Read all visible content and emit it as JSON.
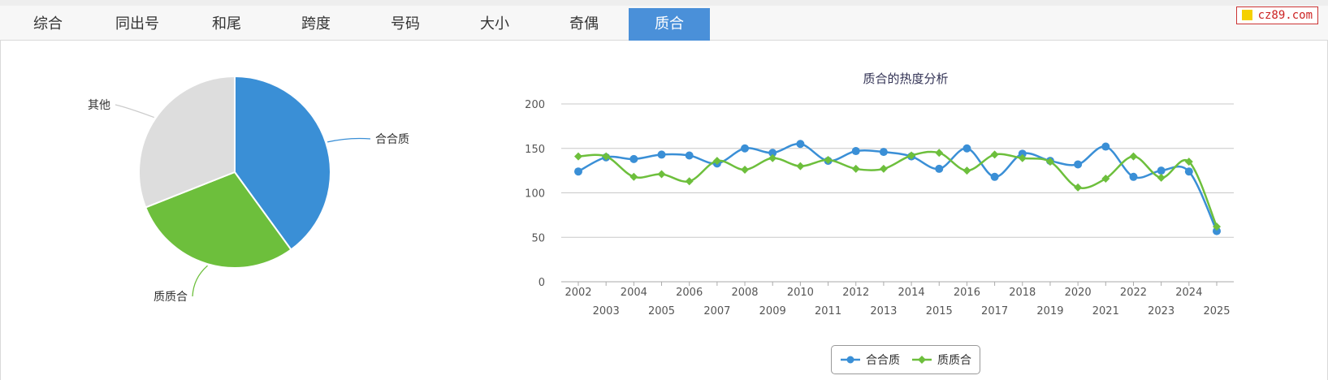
{
  "tabs": [
    {
      "label": "综合",
      "active": false
    },
    {
      "label": "同出号",
      "active": false
    },
    {
      "label": "和尾",
      "active": false
    },
    {
      "label": "跨度",
      "active": false
    },
    {
      "label": "号码",
      "active": false
    },
    {
      "label": "大小",
      "active": false
    },
    {
      "label": "奇偶",
      "active": false
    },
    {
      "label": "质合",
      "active": true
    }
  ],
  "logo_text": "cz89.com",
  "colors": {
    "blue": "#3a8fd6",
    "green": "#6dbf3c",
    "gray": "#dddddd",
    "tab_active": "#4a90d9"
  },
  "chart_data": [
    {
      "type": "pie",
      "slices": [
        {
          "label": "合合质",
          "value": 40,
          "color": "#3a8fd6"
        },
        {
          "label": "质质合",
          "value": 29,
          "color": "#6dbf3c"
        },
        {
          "label": "其他",
          "value": 31,
          "color": "#dddddd"
        }
      ]
    },
    {
      "type": "line",
      "title": "质合的热度分析",
      "x": [
        2002,
        2003,
        2004,
        2005,
        2006,
        2007,
        2008,
        2009,
        2010,
        2011,
        2012,
        2013,
        2014,
        2015,
        2016,
        2017,
        2018,
        2019,
        2020,
        2021,
        2022,
        2023,
        2024,
        2025
      ],
      "ylim": [
        0,
        200
      ],
      "yticks": [
        0,
        50,
        100,
        150,
        200
      ],
      "grid": true,
      "legend": "bottom-center",
      "series": [
        {
          "name": "合合质",
          "color": "#3a8fd6",
          "marker": "circle",
          "values": [
            124,
            140,
            138,
            143,
            142,
            133,
            150,
            145,
            155,
            136,
            147,
            146,
            141,
            127,
            150,
            118,
            144,
            136,
            132,
            152,
            118,
            125,
            124,
            57
          ]
        },
        {
          "name": "质质合",
          "color": "#6dbf3c",
          "marker": "diamond",
          "values": [
            141,
            141,
            118,
            121,
            113,
            136,
            126,
            139,
            130,
            137,
            127,
            127,
            142,
            145,
            125,
            143,
            139,
            135,
            106,
            116,
            141,
            117,
            135,
            62
          ]
        }
      ]
    }
  ]
}
